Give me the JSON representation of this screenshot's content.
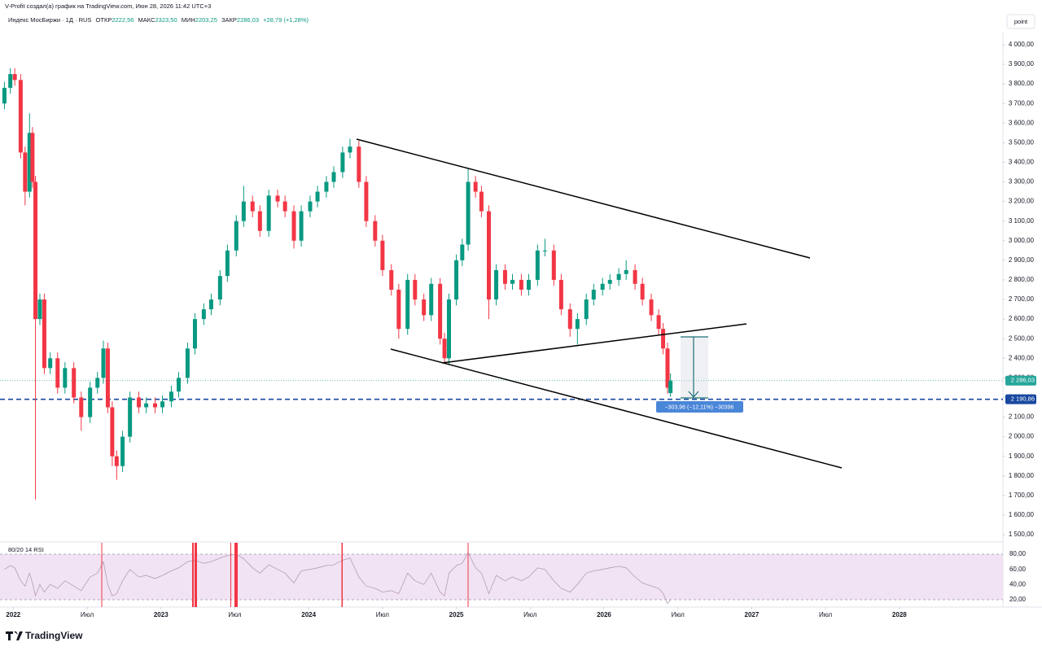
{
  "header": {
    "attribution": "V-Profit создал(а) график на TradingView.com, Июн 28, 2026 11:42 UTC+3",
    "symbol": "Индекс МосБиржи · 1Д · RUS",
    "open_label": "ОТКР",
    "open": "2222,56",
    "high_label": "МАКС",
    "high": "2323,50",
    "low_label": "МИН",
    "low": "2203,25",
    "close_label": "ЗАКР",
    "close": "2286,03",
    "change": "+28,79 (+1,28%)"
  },
  "toolbar": {
    "button": "point"
  },
  "footer": {
    "logo": "TradingView"
  },
  "annotations": {
    "measure": "−303,96 (−12,11%) −30396"
  },
  "chart_data": [
    {
      "type": "candlestick",
      "up_color": "#089981",
      "down_color": "#f23645",
      "x": [
        2021.94,
        2021.98,
        2022.01,
        2022.05,
        2022.08,
        2022.11,
        2022.13,
        2022.15,
        2022.18,
        2022.21,
        2022.25,
        2022.3,
        2022.35,
        2022.41,
        2022.46,
        2022.52,
        2022.57,
        2022.61,
        2022.64,
        2022.67,
        2022.7,
        2022.74,
        2022.79,
        2022.85,
        2022.9,
        2022.96,
        2023.01,
        2023.07,
        2023.12,
        2023.18,
        2023.23,
        2023.29,
        2023.34,
        2023.4,
        2023.45,
        2023.51,
        2023.56,
        2023.62,
        2023.67,
        2023.73,
        2023.79,
        2023.84,
        2023.9,
        2023.95,
        2024.01,
        2024.06,
        2024.12,
        2024.17,
        2024.23,
        2024.28,
        2024.34,
        2024.39,
        2024.45,
        2024.5,
        2024.56,
        2024.61,
        2024.67,
        2024.72,
        2024.78,
        2024.83,
        2024.89,
        2024.92,
        2024.95,
        2025.0,
        2025.04,
        2025.08,
        2025.13,
        2025.17,
        2025.22,
        2025.27,
        2025.33,
        2025.38,
        2025.44,
        2025.49,
        2025.55,
        2025.6,
        2025.66,
        2025.71,
        2025.77,
        2025.82,
        2025.88,
        2025.93,
        2025.99,
        2026.04,
        2026.1,
        2026.15,
        2026.21,
        2026.26,
        2026.32,
        2026.37,
        2026.4,
        2026.43,
        2026.45
      ],
      "open": [
        3700,
        3780,
        3850,
        3820,
        3450,
        3250,
        3550,
        3300,
        2600,
        2700,
        2350,
        2400,
        2250,
        2350,
        2200,
        2100,
        2250,
        2300,
        2450,
        2150,
        1900,
        1850,
        2000,
        2200,
        2150,
        2170,
        2150,
        2180,
        2230,
        2300,
        2450,
        2600,
        2650,
        2700,
        2820,
        2950,
        3100,
        3200,
        3150,
        3050,
        3230,
        3200,
        3150,
        3000,
        3150,
        3200,
        3250,
        3300,
        3350,
        3450,
        3480,
        3300,
        3100,
        3000,
        2850,
        2750,
        2550,
        2800,
        2700,
        2620,
        2780,
        2500,
        2400,
        2700,
        2900,
        2980,
        3300,
        3250,
        3150,
        2700,
        2850,
        2780,
        2800,
        2750,
        2800,
        2950,
        2950,
        2800,
        2650,
        2550,
        2600,
        2700,
        2750,
        2780,
        2800,
        2830,
        2850,
        2780,
        2700,
        2620,
        2550,
        2450,
        2222.56
      ],
      "high": [
        3810,
        3880,
        3880,
        3850,
        3480,
        3650,
        3580,
        3330,
        2730,
        2730,
        2430,
        2430,
        2380,
        2380,
        2230,
        2280,
        2330,
        2490,
        2480,
        2180,
        1930,
        2030,
        2230,
        2230,
        2200,
        2200,
        2210,
        2260,
        2330,
        2480,
        2630,
        2680,
        2730,
        2850,
        2980,
        3130,
        3280,
        3230,
        3180,
        3260,
        3260,
        3230,
        3180,
        3180,
        3230,
        3280,
        3330,
        3380,
        3480,
        3520,
        3510,
        3330,
        3130,
        3030,
        2880,
        2780,
        2830,
        2830,
        2730,
        2810,
        2810,
        2530,
        2730,
        2930,
        3010,
        3370,
        3330,
        3280,
        3180,
        2880,
        2880,
        2830,
        2830,
        2830,
        2980,
        3010,
        2980,
        2830,
        2680,
        2630,
        2730,
        2780,
        2810,
        2830,
        2860,
        2900,
        2880,
        2810,
        2730,
        2650,
        2580,
        2480,
        2323.5
      ],
      "low": [
        3670,
        3750,
        3790,
        3420,
        3180,
        3220,
        3270,
        1680,
        2570,
        2320,
        2320,
        2220,
        2220,
        2170,
        2030,
        2070,
        2220,
        2270,
        2120,
        1850,
        1780,
        1820,
        1970,
        2120,
        2120,
        2120,
        2120,
        2150,
        2200,
        2270,
        2420,
        2570,
        2620,
        2670,
        2790,
        2920,
        3070,
        3120,
        3020,
        3020,
        3170,
        3120,
        2960,
        2970,
        3120,
        3170,
        3220,
        3270,
        3320,
        3420,
        3270,
        3070,
        2970,
        2820,
        2720,
        2500,
        2520,
        2670,
        2590,
        2590,
        2470,
        2380,
        2370,
        2670,
        2870,
        2950,
        3220,
        3120,
        2600,
        2670,
        2750,
        2750,
        2720,
        2720,
        2770,
        2920,
        2770,
        2620,
        2510,
        2470,
        2570,
        2670,
        2720,
        2750,
        2770,
        2800,
        2750,
        2670,
        2590,
        2520,
        2420,
        2220,
        2203.25
      ],
      "close": [
        3780,
        3850,
        3820,
        3450,
        3250,
        3550,
        3300,
        2600,
        2700,
        2350,
        2400,
        2250,
        2350,
        2200,
        2100,
        2250,
        2300,
        2450,
        2150,
        1900,
        1850,
        2000,
        2200,
        2150,
        2170,
        2150,
        2180,
        2230,
        2300,
        2450,
        2600,
        2650,
        2700,
        2820,
        2950,
        3100,
        3200,
        3150,
        3050,
        3230,
        3200,
        3150,
        3000,
        3150,
        3200,
        3250,
        3300,
        3350,
        3450,
        3480,
        3300,
        3100,
        3000,
        2850,
        2750,
        2550,
        2800,
        2700,
        2620,
        2780,
        2500,
        2400,
        2700,
        2900,
        2980,
        3300,
        3250,
        3150,
        2700,
        2850,
        2780,
        2800,
        2750,
        2800,
        2950,
        2950,
        2800,
        2650,
        2550,
        2600,
        2700,
        2750,
        2780,
        2800,
        2830,
        2850,
        2780,
        2700,
        2620,
        2550,
        2450,
        2250,
        2286.03
      ],
      "xlim": [
        2021.91,
        2028.69
      ],
      "xticks": [
        {
          "value": 2022,
          "label": "2022"
        },
        {
          "value": 2022.5,
          "label": "Июл"
        },
        {
          "value": 2023,
          "label": "2023"
        },
        {
          "value": 2023.5,
          "label": "Июл"
        },
        {
          "value": 2024,
          "label": "2024"
        },
        {
          "value": 2024.5,
          "label": "Июл"
        },
        {
          "value": 2025,
          "label": "2025"
        },
        {
          "value": 2025.5,
          "label": "Июл"
        },
        {
          "value": 2026,
          "label": "2026"
        },
        {
          "value": 2026.5,
          "label": "Июл"
        },
        {
          "value": 2027,
          "label": "2027"
        },
        {
          "value": 2027.5,
          "label": "Июл"
        },
        {
          "value": 2028,
          "label": "2028"
        }
      ],
      "ylim": [
        1467,
        4062
      ],
      "yticks": [
        {
          "value": 1500,
          "label": "1 500,00"
        },
        {
          "value": 1600,
          "label": "1 600,00"
        },
        {
          "value": 1700,
          "label": "1 700,00"
        },
        {
          "value": 1800,
          "label": "1 800,00"
        },
        {
          "value": 1900,
          "label": "1 900,00"
        },
        {
          "value": 2000,
          "label": "2 000,00"
        },
        {
          "value": 2100,
          "label": "2 100,00"
        },
        {
          "value": 2200,
          "label": "2 200,00"
        },
        {
          "value": 2300,
          "label": "2 300,00"
        },
        {
          "value": 2400,
          "label": "2 400,00"
        },
        {
          "value": 2500,
          "label": "2 500,00"
        },
        {
          "value": 2600,
          "label": "2 600,00"
        },
        {
          "value": 2700,
          "label": "2 700,00"
        },
        {
          "value": 2800,
          "label": "2 800,00"
        },
        {
          "value": 2900,
          "label": "2 900,00"
        },
        {
          "value": 3000,
          "label": "3 000,00"
        },
        {
          "value": 3100,
          "label": "3 100,00"
        },
        {
          "value": 3200,
          "label": "3 200,00"
        },
        {
          "value": 3300,
          "label": "3 300,00"
        },
        {
          "value": 3400,
          "label": "3 400,00"
        },
        {
          "value": 3500,
          "label": "3 500,00"
        },
        {
          "value": 3600,
          "label": "3 600,00"
        },
        {
          "value": 3700,
          "label": "3 700,00"
        },
        {
          "value": 3800,
          "label": "3 800,00"
        },
        {
          "value": 3900,
          "label": "3 900,00"
        },
        {
          "value": 4000,
          "label": "4 000,00"
        }
      ],
      "price_lines": [
        {
          "value": 2286.03,
          "label": "2 286,03",
          "color": "#26a69a"
        },
        {
          "value": 2190.86,
          "label": "2 190,86",
          "color": "#1848a0"
        }
      ]
    },
    {
      "type": "line",
      "title": "80/20 14 RSI",
      "color": "#b39db8",
      "band_color": "#f1e3f3",
      "values": [
        60,
        65,
        62,
        45,
        38,
        55,
        42,
        25,
        40,
        30,
        40,
        35,
        45,
        38,
        32,
        50,
        55,
        70,
        40,
        25,
        28,
        45,
        60,
        50,
        52,
        48,
        52,
        58,
        62,
        70,
        72,
        68,
        70,
        75,
        78,
        80,
        74,
        62,
        55,
        66,
        60,
        55,
        42,
        58,
        60,
        62,
        65,
        66,
        72,
        75,
        50,
        38,
        35,
        30,
        32,
        28,
        55,
        45,
        40,
        55,
        30,
        25,
        55,
        65,
        68,
        82,
        62,
        55,
        28,
        52,
        45,
        50,
        45,
        50,
        62,
        60,
        45,
        35,
        30,
        40,
        55,
        58,
        60,
        62,
        64,
        62,
        50,
        42,
        38,
        35,
        28,
        15,
        20
      ],
      "ylim": [
        11.4,
        95
      ],
      "yticks": [
        {
          "value": 20,
          "label": "20,00"
        },
        {
          "value": 40,
          "label": "40,00"
        },
        {
          "value": 60,
          "label": "60,00"
        },
        {
          "value": 80,
          "label": "80,00"
        }
      ]
    }
  ]
}
